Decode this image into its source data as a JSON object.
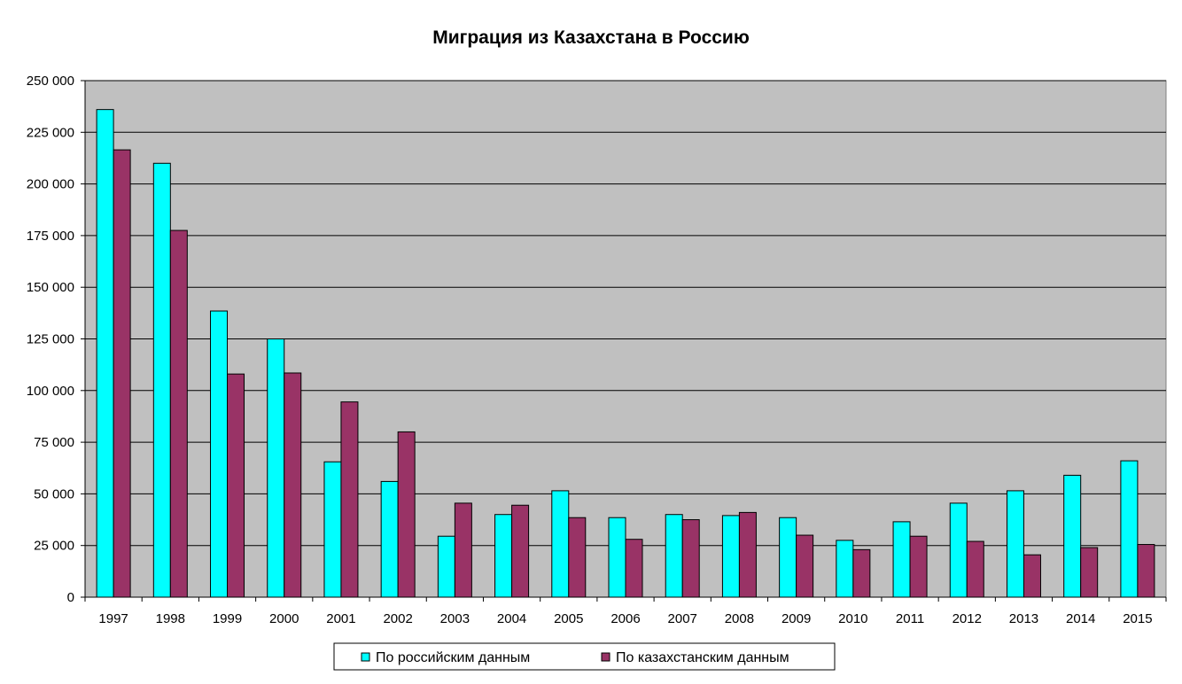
{
  "colors": {
    "plot_background": "#c0c0c0",
    "gridline": "#000000",
    "series_1": "#00ffff",
    "series_2": "#993366"
  },
  "chart_data": {
    "type": "bar",
    "title": "Миграция из Казахстана в Россию",
    "xlabel": "",
    "ylabel": "",
    "ylim": [
      0,
      250000
    ],
    "y_ticks": [
      0,
      25000,
      50000,
      75000,
      100000,
      125000,
      150000,
      175000,
      200000,
      225000,
      250000
    ],
    "y_tick_labels": [
      "0",
      "25 000",
      "50 000",
      "75 000",
      "100 000",
      "125 000",
      "150 000",
      "175 000",
      "200 000",
      "225 000",
      "250 000"
    ],
    "grid": "horizontal",
    "legend_position": "bottom",
    "categories": [
      "1997",
      "1998",
      "1999",
      "2000",
      "2001",
      "2002",
      "2003",
      "2004",
      "2005",
      "2006",
      "2007",
      "2008",
      "2009",
      "2010",
      "2011",
      "2012",
      "2013",
      "2014",
      "2015"
    ],
    "series": [
      {
        "name": "По российским данным",
        "color": "#00ffff",
        "values": [
          236000,
          210000,
          138500,
          125000,
          65500,
          56000,
          29500,
          40000,
          51500,
          38500,
          40000,
          39500,
          38500,
          27500,
          36500,
          45500,
          51500,
          59000,
          66000
        ]
      },
      {
        "name": "По казахстанским данным",
        "color": "#993366",
        "values": [
          216500,
          177500,
          108000,
          108500,
          94500,
          80000,
          45500,
          44500,
          38500,
          28000,
          37500,
          41000,
          30000,
          23000,
          29500,
          27000,
          20500,
          24000,
          25500
        ]
      }
    ]
  }
}
